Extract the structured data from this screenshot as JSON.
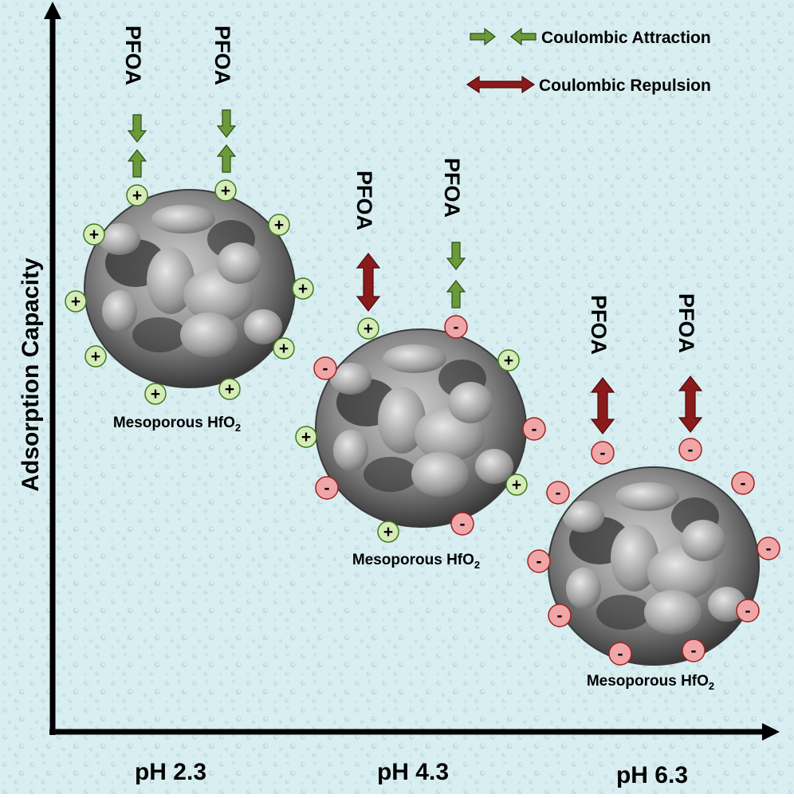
{
  "axes": {
    "y_label": "Adsorption Capacity",
    "x_ticks": [
      "pH 2.3",
      "pH 4.3",
      "pH 6.3"
    ]
  },
  "legend": {
    "attraction": "Coulombic Attraction",
    "repulsion": "Coulombic Repulsion"
  },
  "particles": [
    {
      "label": "Mesoporous HfO",
      "label_sub": "2",
      "ph": "pH 2.3",
      "arrows": [
        {
          "molecule": "PFOA",
          "interaction": "attraction"
        },
        {
          "molecule": "PFOA",
          "interaction": "attraction"
        }
      ],
      "charge_summary": "all positive"
    },
    {
      "label": "Mesoporous HfO",
      "label_sub": "2",
      "ph": "pH 4.3",
      "arrows": [
        {
          "molecule": "PFOA",
          "interaction": "repulsion"
        },
        {
          "molecule": "PFOA",
          "interaction": "attraction"
        }
      ],
      "charge_summary": "mixed"
    },
    {
      "label": "Mesoporous HfO",
      "label_sub": "2",
      "ph": "pH 6.3",
      "arrows": [
        {
          "molecule": "PFOA",
          "interaction": "repulsion"
        },
        {
          "molecule": "PFOA",
          "interaction": "repulsion"
        }
      ],
      "charge_summary": "all negative"
    }
  ],
  "symbols": {
    "positive": "+",
    "negative": "-"
  },
  "colors": {
    "background": "#d8eef0",
    "axis": "#000000",
    "attraction_arrow": "#6a9a3a",
    "repulsion_arrow": "#8b1a1a",
    "positive_fill": "#d6ecb8",
    "positive_stroke": "#3f7a1e",
    "negative_fill": "#f0a6a6",
    "negative_stroke": "#a02020",
    "particle": "#8a8a8a"
  }
}
